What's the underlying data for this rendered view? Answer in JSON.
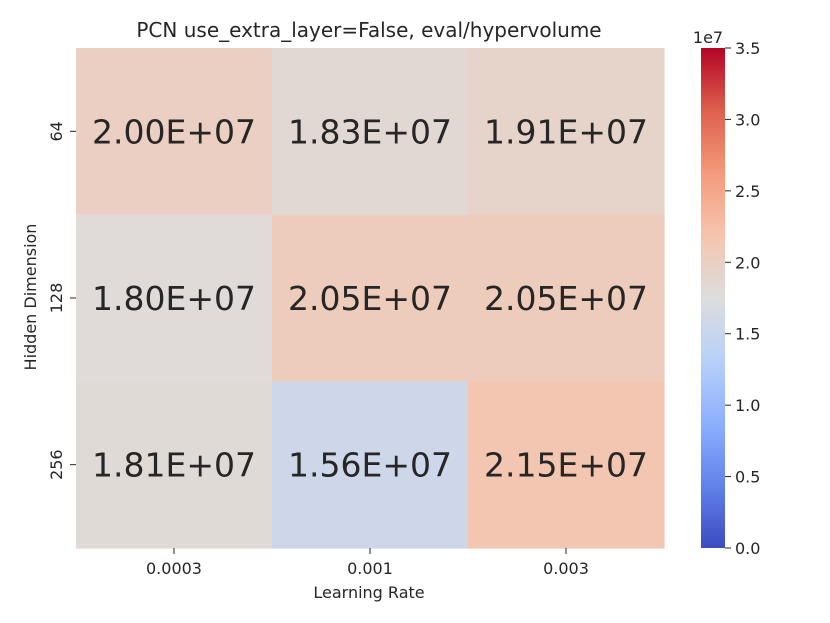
{
  "chart_data": {
    "type": "heatmap",
    "title": "PCN use_extra_layer=False, eval/hypervolume",
    "xlabel": "Learning Rate",
    "ylabel": "Hidden Dimension",
    "x_categories": [
      "0.0003",
      "0.001",
      "0.003"
    ],
    "y_categories": [
      "64",
      "128",
      "256"
    ],
    "values": [
      [
        20000000,
        18300000,
        19100000
      ],
      [
        18000000,
        20500000,
        20500000
      ],
      [
        18100000,
        15600000,
        21500000
      ]
    ],
    "cell_labels": [
      [
        "2.00E+07",
        "1.83E+07",
        "1.91E+07"
      ],
      [
        "1.80E+07",
        "2.05E+07",
        "2.05E+07"
      ],
      [
        "1.81E+07",
        "1.56E+07",
        "2.15E+07"
      ]
    ],
    "colorbar": {
      "colormap": "coolwarm",
      "vmin": 0,
      "vmax": 35000000,
      "ticks": [
        0,
        5000000,
        10000000,
        15000000,
        20000000,
        25000000,
        30000000,
        35000000
      ],
      "tick_labels": [
        "0.0",
        "0.5",
        "1.0",
        "1.5",
        "2.0",
        "2.5",
        "3.0",
        "3.5"
      ],
      "offset_label": "1e7"
    }
  }
}
